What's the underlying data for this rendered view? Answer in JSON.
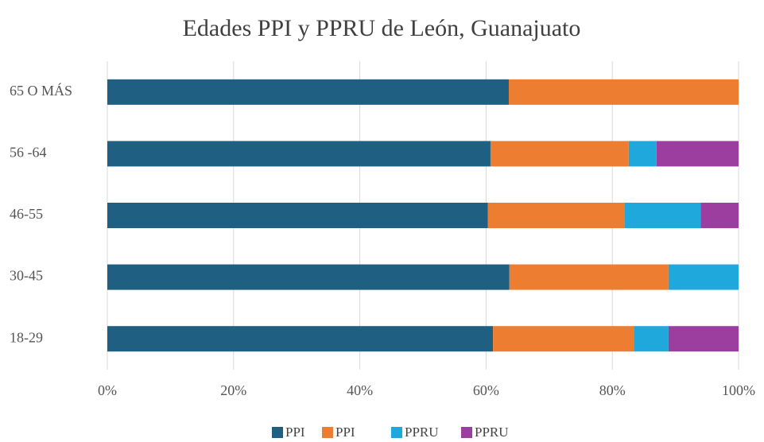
{
  "chart_data": {
    "type": "stacked_barh",
    "title": "Edades PPI y PPRU de León, Guanajuato",
    "categories": [
      "65 O MÁS",
      "56 -64",
      "46-55",
      "30-45",
      "18-29"
    ],
    "series": [
      {
        "name": "PPI",
        "color": "#1f5f82",
        "values": [
          63.6,
          60.7,
          60.3,
          63.7,
          61.1
        ]
      },
      {
        "name": "PPI",
        "color": "#ed7d31",
        "values": [
          36.4,
          21.9,
          21.6,
          25.2,
          22.3
        ]
      },
      {
        "name": "PPRU",
        "color": "#1fa8dc",
        "values": [
          0,
          4.4,
          12.1,
          11.1,
          5.5
        ]
      },
      {
        "name": "PPRU",
        "color": "#9b3ea0",
        "values": [
          0,
          13.0,
          6.0,
          0,
          11.1
        ]
      }
    ],
    "xlim": [
      0,
      100
    ],
    "xticks": [
      {
        "value": 0,
        "label": "0%"
      },
      {
        "value": 20,
        "label": "20%"
      },
      {
        "value": 40,
        "label": "40%"
      },
      {
        "value": 60,
        "label": "60%"
      },
      {
        "value": 80,
        "label": "80%"
      },
      {
        "value": 100,
        "label": "100%"
      }
    ],
    "grid": true,
    "legend": "bottom"
  }
}
